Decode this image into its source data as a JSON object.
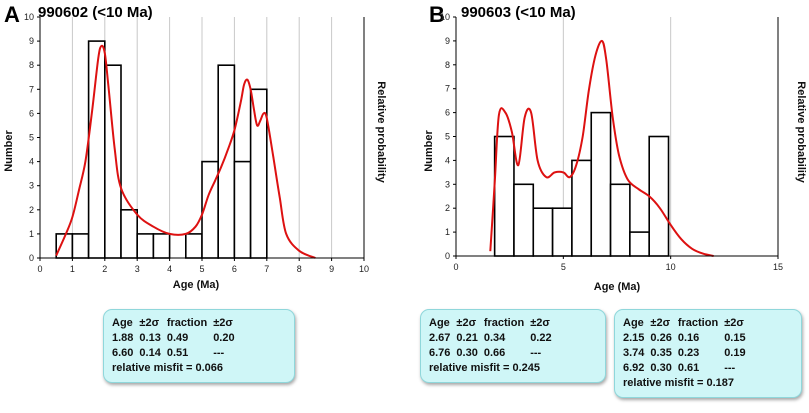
{
  "chart_data": [
    {
      "type": "bar",
      "panel_label": "A",
      "title": "990602 (<10 Ma)",
      "xlabel": "Age (Ma)",
      "ylabel": "Number",
      "y2label": "Relative probability",
      "xlim": [
        0,
        10
      ],
      "ylim": [
        0,
        10
      ],
      "xticks": [
        "0",
        "1",
        "2",
        "3",
        "4",
        "5",
        "6",
        "7",
        "8",
        "9",
        "10"
      ],
      "yticks": [
        "0",
        "1",
        "2",
        "3",
        "4",
        "5",
        "6",
        "7",
        "8",
        "9",
        "10"
      ],
      "bin_width": 0.5,
      "bins": [
        {
          "start": 0.5,
          "count": 1
        },
        {
          "start": 1.0,
          "count": 1
        },
        {
          "start": 1.5,
          "count": 9
        },
        {
          "start": 2.0,
          "count": 8
        },
        {
          "start": 2.5,
          "count": 2
        },
        {
          "start": 3.0,
          "count": 1
        },
        {
          "start": 3.5,
          "count": 1
        },
        {
          "start": 4.5,
          "count": 1
        },
        {
          "start": 5.0,
          "count": 4
        },
        {
          "start": 5.5,
          "count": 8
        },
        {
          "start": 6.0,
          "count": 4
        },
        {
          "start": 6.5,
          "count": 7
        }
      ],
      "probability_curve": {
        "color": "#dd1111",
        "x": [
          0.5,
          0.8,
          1.0,
          1.2,
          1.4,
          1.6,
          1.8,
          1.9,
          2.0,
          2.1,
          2.3,
          2.5,
          3.0,
          3.5,
          4.0,
          4.5,
          4.8,
          5.0,
          5.2,
          5.4,
          5.6,
          5.8,
          6.0,
          6.2,
          6.3,
          6.4,
          6.5,
          6.6,
          6.7,
          6.8,
          6.9,
          7.0,
          7.2,
          7.4,
          7.6,
          8.0,
          8.5
        ],
        "y": [
          0.1,
          1.0,
          1.7,
          2.8,
          4.0,
          6.0,
          8.3,
          8.8,
          8.5,
          7.3,
          4.6,
          2.9,
          1.8,
          1.3,
          1.0,
          1.0,
          1.3,
          1.8,
          2.6,
          3.2,
          3.8,
          4.5,
          5.3,
          6.5,
          7.2,
          7.4,
          7.0,
          6.2,
          5.5,
          5.7,
          6.0,
          5.8,
          4.2,
          2.5,
          1.0,
          0.3,
          0.0
        ]
      },
      "results": {
        "headers": [
          "Age",
          "±2σ",
          "fraction",
          "±2σ"
        ],
        "rows": [
          [
            "1.88",
            "0.13",
            "0.49",
            "0.20"
          ],
          [
            "6.60",
            "0.14",
            "0.51",
            "---"
          ]
        ],
        "misfit": "relative misfit = 0.066"
      }
    },
    {
      "type": "bar",
      "panel_label": "B",
      "title": "990603 (<10 Ma)",
      "xlabel": "Age (Ma)",
      "ylabel": "Number",
      "y2label": "Relative probability",
      "xlim": [
        0,
        15
      ],
      "ylim": [
        0,
        10
      ],
      "xticks": [
        "0",
        "5",
        "10",
        "15"
      ],
      "yticks": [
        "0",
        "1",
        "2",
        "3",
        "4",
        "5",
        "6",
        "7",
        "8",
        "9",
        "10"
      ],
      "bin_width": 0.9,
      "bins": [
        {
          "start": 1.8,
          "count": 5
        },
        {
          "start": 2.7,
          "count": 3
        },
        {
          "start": 3.6,
          "count": 2
        },
        {
          "start": 4.5,
          "count": 2
        },
        {
          "start": 5.4,
          "count": 4
        },
        {
          "start": 6.3,
          "count": 6
        },
        {
          "start": 7.2,
          "count": 3
        },
        {
          "start": 8.1,
          "count": 1
        },
        {
          "start": 9.0,
          "count": 5
        }
      ],
      "probability_curve": {
        "color": "#dd1111",
        "x": [
          1.6,
          1.8,
          2.0,
          2.3,
          2.6,
          2.9,
          3.2,
          3.5,
          3.8,
          4.2,
          4.6,
          5.0,
          5.3,
          5.6,
          5.9,
          6.2,
          6.5,
          6.8,
          7.0,
          7.3,
          7.6,
          8.0,
          8.5,
          9.0,
          9.5,
          10.0,
          10.5,
          11.0,
          11.5,
          12.0
        ],
        "y": [
          0.2,
          3.0,
          5.9,
          6.0,
          5.2,
          3.8,
          5.8,
          6.0,
          4.0,
          3.3,
          3.5,
          3.5,
          3.3,
          3.8,
          5.0,
          7.0,
          8.4,
          9.0,
          8.2,
          5.8,
          4.2,
          3.2,
          2.8,
          2.5,
          2.0,
          1.3,
          0.7,
          0.3,
          0.1,
          0.0
        ]
      },
      "results": [
        {
          "headers": [
            "Age",
            "±2σ",
            "fraction",
            "±2σ"
          ],
          "rows": [
            [
              "2.67",
              "0.21",
              "0.34",
              "0.22"
            ],
            [
              "6.76",
              "0.30",
              "0.66",
              "---"
            ]
          ],
          "misfit": "relative misfit = 0.245"
        },
        {
          "headers": [
            "Age",
            "±2σ",
            "fraction",
            "±2σ"
          ],
          "rows": [
            [
              "2.15",
              "0.26",
              "0.16",
              "0.15"
            ],
            [
              "3.74",
              "0.35",
              "0.23",
              "0.19"
            ],
            [
              "6.92",
              "0.30",
              "0.61",
              "---"
            ]
          ],
          "misfit": "relative misfit = 0.187"
        }
      ]
    }
  ]
}
